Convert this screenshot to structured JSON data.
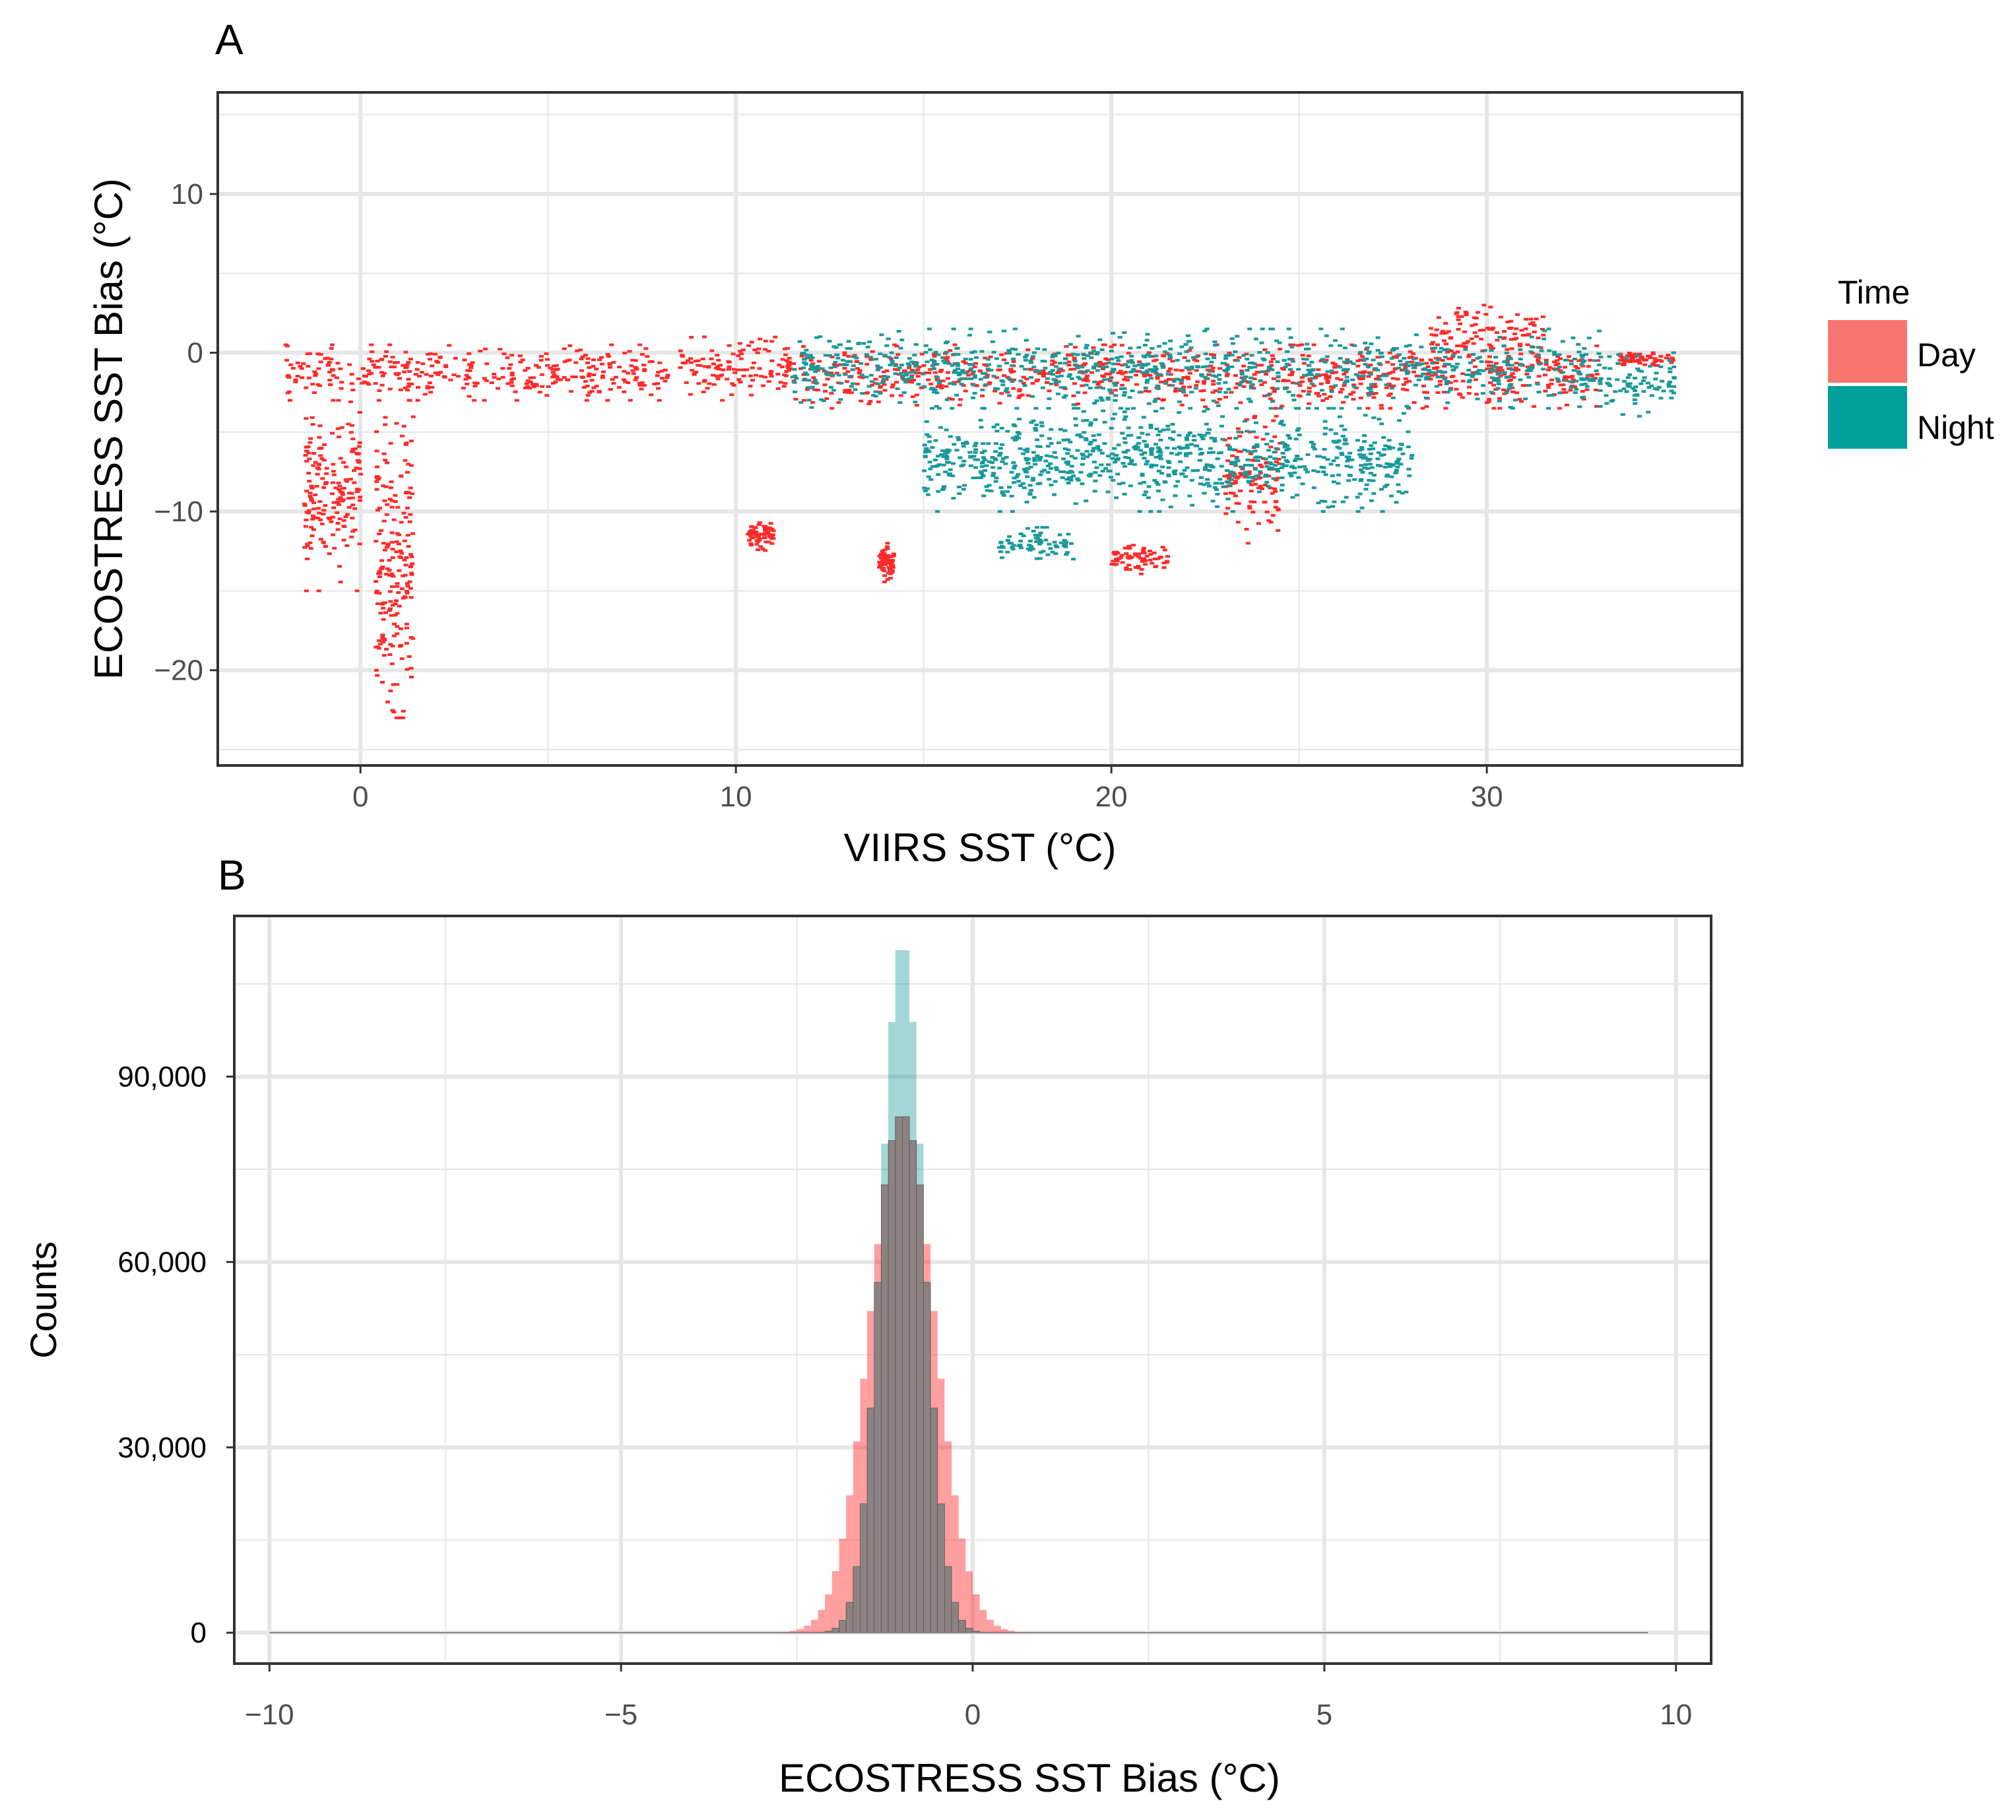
{
  "panels": {
    "a_label": "A",
    "b_label": "B"
  },
  "colors": {
    "day": "#FF2A2A",
    "night": "#19999A",
    "day_legend": "#F8766D",
    "night_legend": "#00A09A",
    "grid": "#E6E6E6",
    "frame": "#333333",
    "overlap": "#8C8282"
  },
  "legend": {
    "title": "Time",
    "items": [
      {
        "label": "Day",
        "color": "#F8766D"
      },
      {
        "label": "Night",
        "color": "#00A09A"
      }
    ]
  },
  "chart_data": [
    {
      "type": "scatter",
      "panel": "A",
      "title": "",
      "xlabel": "VIIRS SST (°C)",
      "ylabel": "ECOSTRESS SST Bias (°C)",
      "xlim": [
        -3.8,
        36.8
      ],
      "ylim": [
        -26,
        16.4
      ],
      "xticks": [
        0,
        10,
        20,
        30
      ],
      "yticks": [
        -20,
        -10,
        0,
        10
      ],
      "grid": true,
      "legend_position": "right",
      "series": [
        {
          "name": "Day",
          "clusters": [
            {
              "x": [
                -2,
                8.2
              ],
              "y": [
                -3,
                0.5
              ]
            },
            {
              "x": [
                8.5,
                12
              ],
              "y": [
                -3,
                1
              ]
            },
            {
              "x": [
                12,
                33
              ],
              "y": [
                -3.5,
                0.5
              ]
            },
            {
              "x": [
                28.5,
                31.5
              ],
              "y": [
                -1,
                3
              ]
            },
            {
              "x": [
                0.4,
                1.4
              ],
              "y": [
                -23,
                -3
              ]
            },
            {
              "x": [
                -1.5,
                0
              ],
              "y": [
                -15,
                -3
              ]
            },
            {
              "x": [
                20,
                21.5
              ],
              "y": [
                -14,
                -12
              ]
            },
            {
              "x": [
                23,
                24.5
              ],
              "y": [
                -12,
                -4
              ]
            },
            {
              "x": [
                10.3,
                11
              ],
              "y": [
                -12.5,
                -10.7
              ]
            },
            {
              "x": [
                13.8,
                14.2
              ],
              "y": [
                -14.5,
                -12
              ]
            },
            {
              "x": [
                33.5,
                35
              ],
              "y": [
                -0.8,
                0
              ]
            }
          ]
        },
        {
          "name": "Night",
          "clusters": [
            {
              "x": [
                11.5,
                33
              ],
              "y": [
                -3.5,
                1.5
              ]
            },
            {
              "x": [
                15,
                28
              ],
              "y": [
                -10,
                -3.5
              ]
            },
            {
              "x": [
                17,
                19
              ],
              "y": [
                -13,
                -11
              ]
            },
            {
              "x": [
                33,
                35
              ],
              "y": [
                -4,
                0
              ]
            }
          ]
        }
      ]
    },
    {
      "type": "histogram",
      "panel": "B",
      "title": "",
      "xlabel": "ECOSTRESS SST Bias (°C)",
      "ylabel": "Counts",
      "xlim": [
        -10.5,
        10.5
      ],
      "ylim": [
        -5000,
        116000
      ],
      "xticks": [
        -10,
        -5,
        0,
        5,
        10
      ],
      "yticks": [
        0,
        30000,
        60000,
        90000
      ],
      "ytick_labels": [
        "0",
        "30,000",
        "60,000",
        "90,000"
      ],
      "grid": true,
      "bin_width": 0.1,
      "series": [
        {
          "name": "Day",
          "mean": -1.0,
          "sd": 0.46,
          "peak": 84000
        },
        {
          "name": "Night",
          "mean": -1.0,
          "sd": 0.3,
          "peak": 112000
        }
      ]
    }
  ]
}
